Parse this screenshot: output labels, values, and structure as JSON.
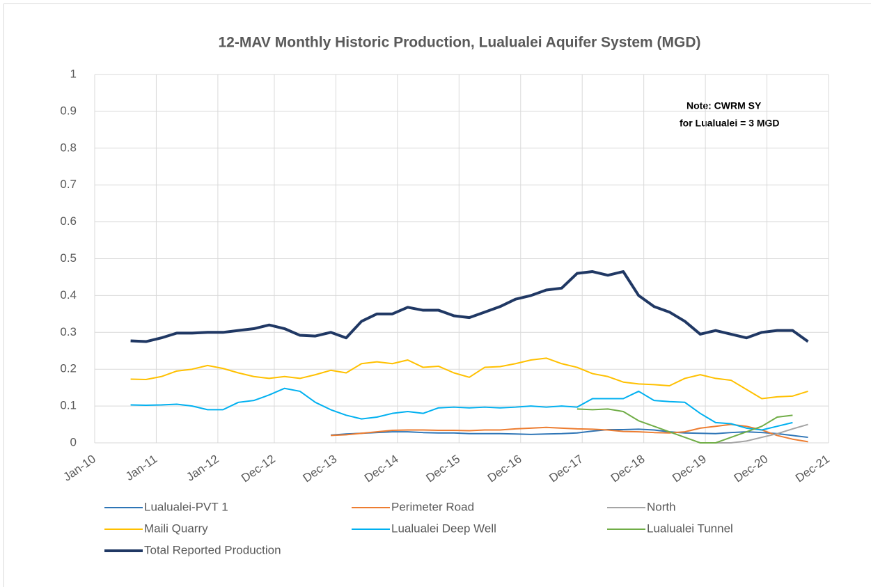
{
  "chart_data": {
    "type": "line",
    "title": "12-MAV Monthly Historic Production, Lualualei Aquifer System (MGD)",
    "annotation": [
      "Note:  CWRM SY",
      "for Lualualei = 3 MGD"
    ],
    "x": [
      "2010-08",
      "2010-11",
      "2011-02",
      "2011-05",
      "2011-08",
      "2011-11",
      "2012-02",
      "2012-05",
      "2012-08",
      "2012-11",
      "2013-02",
      "2013-05",
      "2013-08",
      "2013-11",
      "2014-02",
      "2014-05",
      "2014-08",
      "2014-11",
      "2015-02",
      "2015-05",
      "2015-08",
      "2015-11",
      "2016-02",
      "2016-05",
      "2016-08",
      "2016-11",
      "2017-02",
      "2017-05",
      "2017-08",
      "2017-11",
      "2018-02",
      "2018-05",
      "2018-08",
      "2018-11",
      "2019-02",
      "2019-05",
      "2019-08",
      "2019-11",
      "2020-02",
      "2020-05",
      "2020-08",
      "2020-11",
      "2021-02",
      "2021-05",
      "2021-08"
    ],
    "xlim": [
      "2010-01",
      "2021-12"
    ],
    "xticks": [
      {
        "value": "2010-01",
        "label": "Jan-10"
      },
      {
        "value": "2011-01",
        "label": "Jan-11"
      },
      {
        "value": "2012-01",
        "label": "Jan-12"
      },
      {
        "value": "2012-12",
        "label": "Dec-12"
      },
      {
        "value": "2013-12",
        "label": "Dec-13"
      },
      {
        "value": "2014-12",
        "label": "Dec-14"
      },
      {
        "value": "2015-12",
        "label": "Dec-15"
      },
      {
        "value": "2016-12",
        "label": "Dec-16"
      },
      {
        "value": "2017-12",
        "label": "Dec-17"
      },
      {
        "value": "2018-12",
        "label": "Dec-18"
      },
      {
        "value": "2019-12",
        "label": "Dec-19"
      },
      {
        "value": "2020-12",
        "label": "Dec-20"
      },
      {
        "value": "2021-12",
        "label": "Dec-21"
      }
    ],
    "ylim": [
      0,
      1
    ],
    "yticks": [
      0,
      0.1,
      0.2,
      0.3,
      0.4,
      0.5,
      0.6,
      0.7,
      0.8,
      0.9,
      1
    ],
    "grid": true,
    "legend": "bottom",
    "series": [
      {
        "name": "Lualualei-PVT 1",
        "color": "#2e75b6",
        "width": 2,
        "values": [
          null,
          null,
          null,
          null,
          null,
          null,
          null,
          null,
          null,
          null,
          null,
          null,
          null,
          0.021,
          0.024,
          0.026,
          0.028,
          0.03,
          0.03,
          0.028,
          0.027,
          0.027,
          0.025,
          0.025,
          0.025,
          0.024,
          0.023,
          0.024,
          0.025,
          0.027,
          0.032,
          0.036,
          0.036,
          0.037,
          0.035,
          0.03,
          0.027,
          0.026,
          0.025,
          0.028,
          0.03,
          0.028,
          0.025,
          0.02,
          0.015
        ]
      },
      {
        "name": "Perimeter Road",
        "color": "#ed7d31",
        "width": 2,
        "values": [
          null,
          null,
          null,
          null,
          null,
          null,
          null,
          null,
          null,
          null,
          null,
          null,
          null,
          0.02,
          0.022,
          0.026,
          0.03,
          0.034,
          0.035,
          0.035,
          0.034,
          0.034,
          0.033,
          0.035,
          0.035,
          0.038,
          0.04,
          0.042,
          0.04,
          0.038,
          0.037,
          0.035,
          0.031,
          0.03,
          0.028,
          0.027,
          0.03,
          0.04,
          0.045,
          0.05,
          0.045,
          0.035,
          0.02,
          0.01,
          0.003
        ]
      },
      {
        "name": "North",
        "color": "#a5a5a5",
        "width": 2,
        "values": [
          null,
          null,
          null,
          null,
          null,
          null,
          null,
          null,
          null,
          null,
          null,
          null,
          null,
          null,
          null,
          null,
          null,
          null,
          null,
          null,
          null,
          null,
          null,
          null,
          null,
          null,
          null,
          null,
          null,
          null,
          null,
          null,
          null,
          null,
          null,
          null,
          null,
          0,
          0,
          0,
          0.005,
          0.015,
          0.025,
          0.038,
          0.05
        ]
      },
      {
        "name": "Maili Quarry",
        "color": "#ffc000",
        "width": 2,
        "values": [
          0.173,
          0.172,
          0.18,
          0.195,
          0.2,
          0.21,
          0.202,
          0.19,
          0.18,
          0.175,
          0.18,
          0.175,
          0.185,
          0.197,
          0.19,
          0.215,
          0.22,
          0.215,
          0.225,
          0.205,
          0.208,
          0.19,
          0.178,
          0.205,
          0.207,
          0.215,
          0.225,
          0.23,
          0.215,
          0.205,
          0.188,
          0.18,
          0.165,
          0.16,
          0.158,
          0.155,
          0.175,
          0.185,
          0.175,
          0.17,
          0.145,
          0.12,
          0.125,
          0.127,
          0.14
        ]
      },
      {
        "name": "Lualualei Deep Well",
        "color": "#00b0f0",
        "width": 2,
        "values": [
          0.103,
          0.102,
          0.103,
          0.105,
          0.1,
          0.09,
          0.09,
          0.11,
          0.115,
          0.13,
          0.148,
          0.14,
          0.11,
          0.09,
          0.075,
          0.065,
          0.07,
          0.08,
          0.085,
          0.08,
          0.095,
          0.097,
          0.095,
          0.097,
          0.095,
          0.097,
          0.1,
          0.097,
          0.1,
          0.097,
          0.12,
          0.12,
          0.12,
          0.14,
          0.115,
          0.112,
          0.11,
          0.08,
          0.055,
          0.052,
          0.04,
          0.035,
          0.045,
          0.055,
          null
        ]
      },
      {
        "name": "Lualualei Tunnel",
        "color": "#70ad47",
        "width": 2,
        "values": [
          null,
          null,
          null,
          null,
          null,
          null,
          null,
          null,
          null,
          null,
          null,
          null,
          null,
          null,
          null,
          null,
          null,
          null,
          null,
          null,
          null,
          null,
          null,
          null,
          null,
          null,
          null,
          null,
          null,
          0.092,
          0.09,
          0.092,
          0.085,
          0.06,
          0.045,
          0.03,
          0.015,
          0,
          0,
          0.015,
          0.03,
          0.045,
          0.07,
          0.075,
          null
        ]
      },
      {
        "name": "Total Reported Production",
        "color": "#203864",
        "width": 4,
        "values": [
          0.277,
          0.275,
          0.285,
          0.298,
          0.298,
          0.3,
          0.3,
          0.305,
          0.31,
          0.32,
          0.31,
          0.292,
          0.29,
          0.3,
          0.285,
          0.33,
          0.35,
          0.35,
          0.368,
          0.36,
          0.36,
          0.345,
          0.34,
          0.355,
          0.37,
          0.39,
          0.4,
          0.415,
          0.42,
          0.46,
          0.465,
          0.455,
          0.465,
          0.4,
          0.37,
          0.355,
          0.33,
          0.295,
          0.305,
          0.295,
          0.285,
          0.3,
          0.305,
          0.305,
          0.275
        ]
      }
    ]
  }
}
